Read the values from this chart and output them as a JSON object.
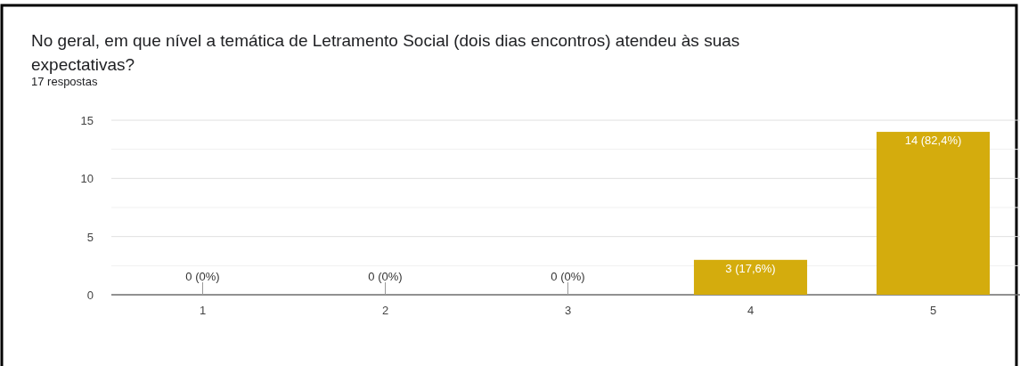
{
  "chart_data": {
    "type": "bar",
    "title": "No geral, em que nível a temática de Letramento Social (dois dias encontros) atendeu às suas expectativas?",
    "subtitle": "17 respostas",
    "categories": [
      "1",
      "2",
      "3",
      "4",
      "5"
    ],
    "values": [
      0,
      0,
      0,
      3,
      14
    ],
    "value_labels": [
      "0 (0%)",
      "0 (0%)",
      "0 (0%)",
      "3 (17,6%)",
      "14 (82,4%)"
    ],
    "color": "#d4ac0d",
    "ylim": [
      0,
      15
    ],
    "yticks": [
      0,
      {
        "value": 2.5,
        "label": null
      },
      5,
      {
        "value": 7.5,
        "label": null
      },
      10,
      {
        "value": 12.5,
        "label": null
      },
      15
    ],
    "grid": "y"
  }
}
